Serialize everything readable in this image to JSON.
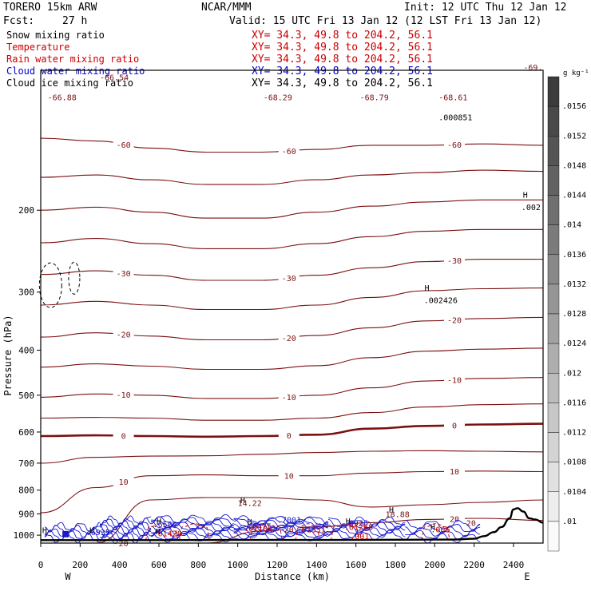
{
  "header": {
    "model": "TORERO  15km ARW",
    "center": "NCAR/MMM",
    "init": "Init: 12 UTC Thu 12 Jan 12",
    "fcst_label": "Fcst:",
    "fcst_value": "27 h",
    "valid": "Valid: 15 UTC Fri 13 Jan 12 (12 LST Fri 13 Jan 12)"
  },
  "fields": [
    {
      "label": "Snow mixing ratio",
      "color": "#000000",
      "xy": "XY=  34.3, 49.8 to 204.2, 56.1",
      "xy_color": "#cc0000"
    },
    {
      "label": "Temperature",
      "color": "#cc0000",
      "xy": "XY=  34.3, 49.8 to 204.2, 56.1",
      "xy_color": "#cc0000"
    },
    {
      "label": "Rain water mixing ratio",
      "color": "#cc0000",
      "xy": "XY=  34.3, 49.8 to 204.2, 56.1",
      "xy_color": "#cc0000"
    },
    {
      "label": "Cloud water mixing ratio",
      "color": "#0000cc",
      "xy": "XY=  34.3, 49.8 to 204.2, 56.1",
      "xy_color": "#0000cc"
    },
    {
      "label": "Cloud ice mixing ratio",
      "color": "#000000",
      "xy": "XY=  34.3, 49.8 to 204.2, 56.1",
      "xy_color": "#000000"
    }
  ],
  "chart_data": {
    "type": "contour",
    "xlabel": "Distance (km)",
    "ylabel": "Pressure (hPa)",
    "xlim": [
      0,
      2550
    ],
    "ylim": [
      1040,
      100
    ],
    "y_log": true,
    "x_ticks": [
      "0",
      "200",
      "400",
      "600",
      "800",
      "1000",
      "1200",
      "1400",
      "1600",
      "1800",
      "2000",
      "2200",
      "2400"
    ],
    "y_ticks": [
      "200",
      "300",
      "400",
      "500",
      "600",
      "700",
      "800",
      "900",
      "1000"
    ],
    "x_end_labels": [
      "W",
      "E"
    ],
    "colors": {
      "temperature": "#7b1010",
      "cloud_water": "#1a1acc",
      "rain": "#cc0000",
      "terrain": "#000000"
    },
    "temperature_isotherms": [
      {
        "label": "-60",
        "p": [
          140,
          142,
          147,
          150,
          150,
          148,
          145,
          145,
          144,
          145
        ]
      },
      {
        "label": "",
        "p": [
          170,
          168,
          172,
          176,
          176,
          172,
          168,
          166,
          164,
          165
        ]
      },
      {
        "label": "",
        "p": [
          200,
          197,
          202,
          208,
          208,
          202,
          196,
          192,
          190,
          190
        ]
      },
      {
        "label": "",
        "p": [
          235,
          230,
          236,
          242,
          242,
          236,
          228,
          222,
          220,
          220
        ]
      },
      {
        "label": "-30",
        "p": [
          275,
          270,
          276,
          283,
          283,
          276,
          266,
          258,
          255,
          255
        ]
      },
      {
        "label": "",
        "p": [
          320,
          314,
          320,
          327,
          327,
          320,
          308,
          298,
          295,
          294
        ]
      },
      {
        "label": "-20",
        "p": [
          375,
          367,
          373,
          380,
          380,
          372,
          358,
          346,
          342,
          340
        ]
      },
      {
        "label": "",
        "p": [
          435,
          428,
          433,
          440,
          440,
          432,
          415,
          402,
          398,
          396
        ]
      },
      {
        "label": "-10",
        "p": [
          505,
          497,
          500,
          508,
          508,
          500,
          482,
          466,
          460,
          458
        ]
      },
      {
        "label": "",
        "p": [
          560,
          558,
          560,
          566,
          566,
          560,
          545,
          530,
          524,
          522
        ]
      },
      {
        "label": "0",
        "p": [
          612,
          610,
          612,
          614,
          612,
          608,
          590,
          582,
          578,
          576
        ]
      },
      {
        "label": "",
        "p": [
          700,
          680,
          676,
          675,
          670,
          664,
          660,
          658,
          660,
          662
        ]
      },
      {
        "label": "10",
        "p": [
          895,
          790,
          745,
          742,
          745,
          745,
          735,
          730,
          728,
          730
        ]
      },
      {
        "label": "",
        "p": [
          1040,
          1040,
          840,
          830,
          830,
          840,
          870,
          860,
          850,
          840
        ]
      },
      {
        "label": "20",
        "p": [
          1040,
          1040,
          1040,
          1040,
          980,
          960,
          940,
          925,
          920,
          930
        ]
      }
    ],
    "isotherm_x": [
      0,
      280,
      560,
      840,
      1120,
      1400,
      1680,
      1960,
      2240,
      2550
    ],
    "terrain": {
      "x": [
        0,
        300,
        600,
        900,
        1200,
        1500,
        1800,
        2100,
        2200,
        2250,
        2300,
        2340,
        2380,
        2400,
        2420,
        2450,
        2480,
        2510,
        2550
      ],
      "p": [
        1025,
        1025,
        1025,
        1024,
        1024,
        1024,
        1023,
        1022,
        1018,
        1005,
        985,
        960,
        920,
        880,
        875,
        890,
        920,
        925,
        940
      ]
    },
    "annotations": [
      {
        "text": "-66.88",
        "x": 35,
        "p": 116,
        "color": "#7b1010"
      },
      {
        "text": "-66.54",
        "x": 300,
        "p": 105,
        "color": "#7b1010"
      },
      {
        "text": "-68.29",
        "x": 1130,
        "p": 116,
        "color": "#7b1010"
      },
      {
        "text": "-68.79",
        "x": 1620,
        "p": 116,
        "color": "#7b1010"
      },
      {
        "text": "-68.61",
        "x": 2020,
        "p": 116,
        "color": "#7b1010"
      },
      {
        "text": "-69.",
        "x": 2450,
        "p": 100,
        "color": "#7b1010"
      },
      {
        "text": ".000851",
        "x": 2020,
        "p": 128,
        "color": "#000000"
      },
      {
        "text": ".002",
        "x": 2440,
        "p": 200,
        "color": "#000000"
      },
      {
        "text": ".002426",
        "x": 1945,
        "p": 317,
        "color": "#000000"
      },
      {
        "text": "14.22",
        "x": 1000,
        "p": 865,
        "color": "#7b1010"
      },
      {
        "text": "18.88",
        "x": 1750,
        "p": 915,
        "color": "#7b1010"
      },
      {
        "text": ".6935",
        "x": 230,
        "p": 1000,
        "color": "#1a1acc"
      },
      {
        "text": ".6589",
        "x": 570,
        "p": 960,
        "color": "#1a1acc"
      },
      {
        "text": ".6475",
        "x": 1050,
        "p": 970,
        "color": "#1a1acc"
      },
      {
        "text": ".6926",
        "x": 1540,
        "p": 955,
        "color": "#1a1acc"
      },
      {
        "text": ".7001",
        "x": 1200,
        "p": 940,
        "color": "#1a1acc"
      },
      {
        "text": ".01428",
        "x": 570,
        "p": 1005,
        "color": "#cc0000"
      },
      {
        "text": ".01106",
        "x": 1030,
        "p": 980,
        "color": "#cc0000"
      },
      {
        "text": ".01331",
        "x": 1300,
        "p": 985,
        "color": "#cc0000"
      },
      {
        "text": ".01268",
        "x": 1540,
        "p": 975,
        "color": "#cc0000"
      },
      {
        "text": ".001",
        "x": 1570,
        "p": 1020,
        "color": "#cc0000"
      },
      {
        "text": ".006",
        "x": 1980,
        "p": 985,
        "color": "#cc0000"
      },
      {
        "text": "20",
        "x": 2160,
        "p": 955,
        "color": "#7b1010"
      }
    ],
    "H_marks": [
      {
        "x": 2460,
        "p": 188
      },
      {
        "x": 1960,
        "p": 298
      },
      {
        "x": 1025,
        "p": 853
      },
      {
        "x": 1780,
        "p": 895
      },
      {
        "x": 600,
        "p": 945
      },
      {
        "x": 1060,
        "p": 950
      },
      {
        "x": 1560,
        "p": 945
      },
      {
        "x": 260,
        "p": 990
      },
      {
        "x": 20,
        "p": 990
      },
      {
        "x": 595,
        "p": 995
      },
      {
        "x": 1990,
        "p": 975
      }
    ],
    "colorbar": {
      "unit": "g kg⁻¹",
      "ticks": [
        ".0156",
        ".0152",
        ".0148",
        ".0144",
        ".014",
        ".0136",
        ".0132",
        ".0128",
        ".0124",
        ".012",
        ".0116",
        ".0112",
        ".0108",
        ".0104",
        ".01"
      ],
      "top_value": 0.0158,
      "bottom_value": 0.0098
    }
  }
}
